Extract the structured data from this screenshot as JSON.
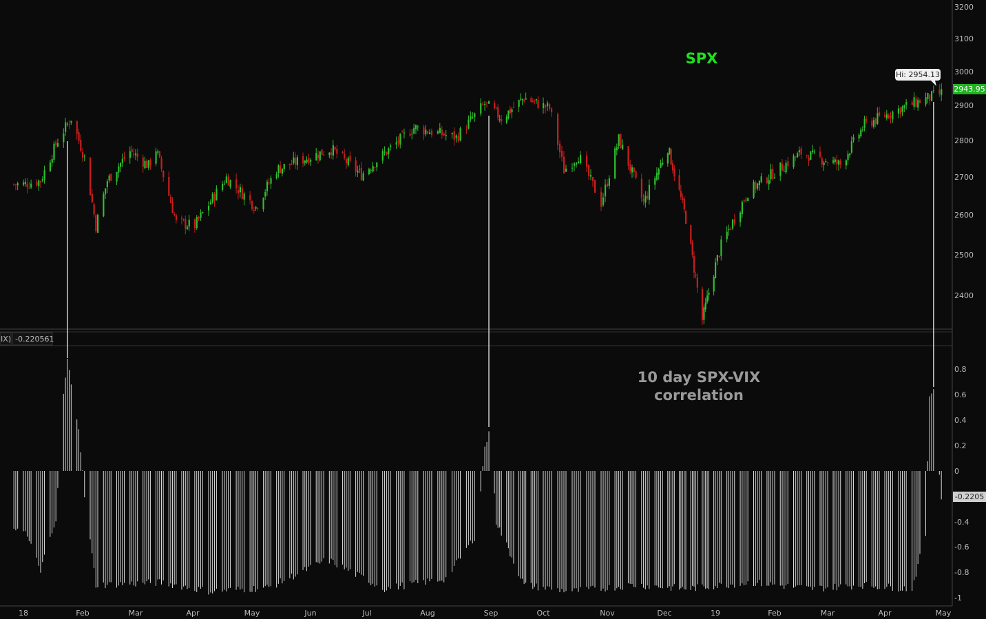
{
  "colors": {
    "background": "#0b0b0b",
    "up": "#2fbf2f",
    "down": "#c81e1e",
    "corr_bars": "#d9d9d9",
    "axis": "#bdbdbd",
    "title": "#19e619",
    "highlight_line": "#cfcfcf"
  },
  "price_panel": {
    "title": "SPX",
    "hi_label": "Hi: 2954.13",
    "last_label": "2943.95",
    "y_ticks": [
      "3200",
      "3100",
      "3000",
      "2900",
      "2800",
      "2700",
      "2600",
      "2500",
      "2400"
    ]
  },
  "corr_panel": {
    "study_left": "IX)",
    "study_value": "-0.220561",
    "title_line1": "10 day SPX-VIX",
    "title_line2": "correlation",
    "last_label": "-0.2205",
    "y_ticks": [
      "0.8",
      "0.6",
      "0.4",
      "0.2",
      "0",
      "-0.4",
      "-0.6",
      "-0.8",
      "-1"
    ]
  },
  "x_axis": {
    "labels": [
      "18",
      "Feb",
      "Mar",
      "Apr",
      "May",
      "Jun",
      "Jul",
      "Aug",
      "Sep",
      "Oct",
      "Nov",
      "Dec",
      "19",
      "Feb",
      "Mar",
      "Apr",
      "May"
    ]
  },
  "chart_data": [
    {
      "type": "candlestick",
      "title": "SPX",
      "y_scale": "log",
      "ylim": [
        2330,
        3210
      ],
      "x_range": [
        "2018-01-01",
        "2019-05-01"
      ],
      "annotations": [
        "Hi: 2954.13",
        "2943.95"
      ],
      "close_anchors": [
        {
          "date": "2018-01-01",
          "close": 2690
        },
        {
          "date": "2018-01-10",
          "close": 2700
        },
        {
          "date": "2018-01-19",
          "close": 2810
        },
        {
          "date": "2018-01-26",
          "close": 2873
        },
        {
          "date": "2018-02-02",
          "close": 2762
        },
        {
          "date": "2018-02-08",
          "close": 2581
        },
        {
          "date": "2018-02-14",
          "close": 2700
        },
        {
          "date": "2018-02-26",
          "close": 2780
        },
        {
          "date": "2018-03-08",
          "close": 2740
        },
        {
          "date": "2018-03-12",
          "close": 2786
        },
        {
          "date": "2018-03-23",
          "close": 2590
        },
        {
          "date": "2018-04-02",
          "close": 2582
        },
        {
          "date": "2018-04-18",
          "close": 2708
        },
        {
          "date": "2018-05-03",
          "close": 2630
        },
        {
          "date": "2018-05-14",
          "close": 2730
        },
        {
          "date": "2018-06-12",
          "close": 2786
        },
        {
          "date": "2018-06-28",
          "close": 2716
        },
        {
          "date": "2018-07-25",
          "close": 2846
        },
        {
          "date": "2018-08-15",
          "close": 2818
        },
        {
          "date": "2018-08-29",
          "close": 2914
        },
        {
          "date": "2018-09-07",
          "close": 2872
        },
        {
          "date": "2018-09-20",
          "close": 2931
        },
        {
          "date": "2018-10-04",
          "close": 2901
        },
        {
          "date": "2018-10-11",
          "close": 2728
        },
        {
          "date": "2018-10-18",
          "close": 2768
        },
        {
          "date": "2018-10-29",
          "close": 2641
        },
        {
          "date": "2018-11-07",
          "close": 2813
        },
        {
          "date": "2018-11-20",
          "close": 2641
        },
        {
          "date": "2018-12-03",
          "close": 2790
        },
        {
          "date": "2018-12-14",
          "close": 2600
        },
        {
          "date": "2018-12-24",
          "close": 2351
        },
        {
          "date": "2019-01-04",
          "close": 2532
        },
        {
          "date": "2019-01-18",
          "close": 2670
        },
        {
          "date": "2019-02-15",
          "close": 2775
        },
        {
          "date": "2019-03-08",
          "close": 2743
        },
        {
          "date": "2019-03-21",
          "close": 2854
        },
        {
          "date": "2019-04-12",
          "close": 2907
        },
        {
          "date": "2019-04-30",
          "close": 2945
        }
      ]
    },
    {
      "type": "bar",
      "title": "10 day SPX-VIX correlation",
      "ylim": [
        -1,
        1
      ],
      "y_ticks": [
        0.8,
        0.6,
        0.4,
        0.2,
        0,
        -0.4,
        -0.6,
        -0.8,
        -1
      ],
      "last_value": -0.2205,
      "key_points": [
        {
          "date": "2018-01-01",
          "value": -0.45
        },
        {
          "date": "2018-01-10",
          "value": -0.78
        },
        {
          "date": "2018-01-18",
          "value": -0.4
        },
        {
          "date": "2018-01-22",
          "value": 0.6
        },
        {
          "date": "2018-01-24",
          "value": 0.87
        },
        {
          "date": "2018-01-30",
          "value": 0.35
        },
        {
          "date": "2018-02-02",
          "value": -0.2
        },
        {
          "date": "2018-02-08",
          "value": -0.9
        },
        {
          "date": "2018-03-15",
          "value": -0.88
        },
        {
          "date": "2018-04-10",
          "value": -0.95
        },
        {
          "date": "2018-05-10",
          "value": -0.92
        },
        {
          "date": "2018-06-10",
          "value": -0.7
        },
        {
          "date": "2018-07-10",
          "value": -0.93
        },
        {
          "date": "2018-08-10",
          "value": -0.85
        },
        {
          "date": "2018-08-25",
          "value": -0.5
        },
        {
          "date": "2018-08-29",
          "value": 0.2
        },
        {
          "date": "2018-09-01",
          "value": 0.33
        },
        {
          "date": "2018-09-04",
          "value": -0.4
        },
        {
          "date": "2018-09-20",
          "value": -0.9
        },
        {
          "date": "2018-10-15",
          "value": -0.95
        },
        {
          "date": "2018-11-15",
          "value": -0.9
        },
        {
          "date": "2018-12-15",
          "value": -0.93
        },
        {
          "date": "2019-01-20",
          "value": -0.88
        },
        {
          "date": "2019-02-20",
          "value": -0.93
        },
        {
          "date": "2019-03-20",
          "value": -0.9
        },
        {
          "date": "2019-04-15",
          "value": -0.93
        },
        {
          "date": "2019-04-22",
          "value": -0.5
        },
        {
          "date": "2019-04-24",
          "value": 0.6
        },
        {
          "date": "2019-04-26",
          "value": 0.65
        },
        {
          "date": "2019-04-28",
          "value": 0.3
        },
        {
          "date": "2019-04-29",
          "value": 0.0
        },
        {
          "date": "2019-04-30",
          "value": -0.2205
        }
      ]
    }
  ]
}
